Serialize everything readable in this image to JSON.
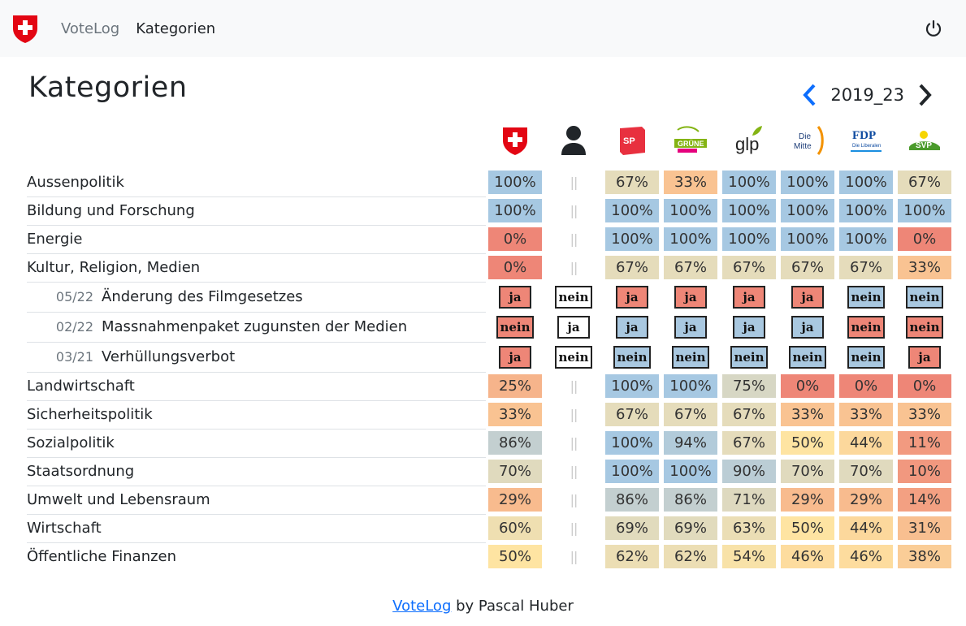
{
  "nav": {
    "brand": "VoteLog",
    "active": "Kategorien"
  },
  "page": {
    "title": "Kategorien",
    "period": "2019_23"
  },
  "columns": [
    {
      "name": "Schweiz",
      "icon": "swiss-shield-icon"
    },
    {
      "name": "Person",
      "icon": "person-icon"
    },
    {
      "name": "SP",
      "label": "SP",
      "color": "#e8303f"
    },
    {
      "name": "Grüne",
      "label": "GRÜNE",
      "color": "#84b414"
    },
    {
      "name": "glp",
      "label": "glp",
      "color": "#222222"
    },
    {
      "name": "Die Mitte",
      "label": "Die Mitte",
      "color": "#f39200"
    },
    {
      "name": "FDP",
      "label": "FDP",
      "sub": "Die Liberalen",
      "color": "#0f4ba0"
    },
    {
      "name": "SVP",
      "label": "SVP",
      "color": "#4a9b2b"
    }
  ],
  "colors": {
    "scale": [
      "#ee8677",
      "#f8bd8f",
      "#fee4a2",
      "#e5dcbb",
      "#c3cfd0",
      "#a6c8e2"
    ],
    "ja_no": "#ee8677",
    "ja_yes": "#a9c8e0",
    "none": "#ffffff"
  },
  "rows": [
    {
      "type": "cat",
      "label": "Aussenpolitik",
      "values": [
        "100%",
        "||",
        "67%",
        "33%",
        "100%",
        "100%",
        "100%",
        "67%"
      ]
    },
    {
      "type": "cat",
      "label": "Bildung und Forschung",
      "values": [
        "100%",
        "||",
        "100%",
        "100%",
        "100%",
        "100%",
        "100%",
        "100%"
      ]
    },
    {
      "type": "cat",
      "label": "Energie",
      "values": [
        "0%",
        "||",
        "100%",
        "100%",
        "100%",
        "100%",
        "100%",
        "0%"
      ]
    },
    {
      "type": "cat",
      "label": "Kultur, Religion, Medien",
      "values": [
        "0%",
        "||",
        "67%",
        "67%",
        "67%",
        "67%",
        "67%",
        "33%"
      ]
    },
    {
      "type": "vote",
      "date": "05/22",
      "label": "Änderung des Filmgesetzes",
      "values": [
        "ja",
        "nein",
        "ja",
        "ja",
        "ja",
        "ja",
        "nein",
        "nein"
      ],
      "colors": [
        "red",
        "white",
        "red",
        "red",
        "red",
        "red",
        "blue",
        "blue"
      ]
    },
    {
      "type": "vote",
      "date": "02/22",
      "label": "Massnahmenpaket zugunsten der Medien",
      "values": [
        "nein",
        "ja",
        "ja",
        "ja",
        "ja",
        "ja",
        "nein",
        "nein"
      ],
      "colors": [
        "red",
        "white",
        "blue",
        "blue",
        "blue",
        "blue",
        "red",
        "red"
      ]
    },
    {
      "type": "vote",
      "date": "03/21",
      "label": "Verhüllungsverbot",
      "values": [
        "ja",
        "nein",
        "nein",
        "nein",
        "nein",
        "nein",
        "nein",
        "ja"
      ],
      "colors": [
        "red",
        "white",
        "blue",
        "blue",
        "blue",
        "blue",
        "blue",
        "red"
      ]
    },
    {
      "type": "cat",
      "label": "Landwirtschaft",
      "values": [
        "25%",
        "||",
        "100%",
        "100%",
        "75%",
        "0%",
        "0%",
        "0%"
      ]
    },
    {
      "type": "cat",
      "label": "Sicherheitspolitik",
      "values": [
        "33%",
        "||",
        "67%",
        "67%",
        "67%",
        "33%",
        "33%",
        "33%"
      ]
    },
    {
      "type": "cat",
      "label": "Sozialpolitik",
      "values": [
        "86%",
        "||",
        "100%",
        "94%",
        "67%",
        "50%",
        "44%",
        "11%"
      ]
    },
    {
      "type": "cat",
      "label": "Staatsordnung",
      "values": [
        "70%",
        "||",
        "100%",
        "100%",
        "90%",
        "70%",
        "70%",
        "10%"
      ]
    },
    {
      "type": "cat",
      "label": "Umwelt und Lebensraum",
      "values": [
        "29%",
        "||",
        "86%",
        "86%",
        "71%",
        "29%",
        "29%",
        "14%"
      ]
    },
    {
      "type": "cat",
      "label": "Wirtschaft",
      "values": [
        "60%",
        "||",
        "69%",
        "69%",
        "63%",
        "50%",
        "44%",
        "31%"
      ]
    },
    {
      "type": "cat",
      "label": "Öffentliche Finanzen",
      "values": [
        "50%",
        "||",
        "62%",
        "62%",
        "54%",
        "46%",
        "46%",
        "38%"
      ]
    }
  ],
  "footer": {
    "link": "VoteLog",
    "text": " by Pascal Huber"
  }
}
